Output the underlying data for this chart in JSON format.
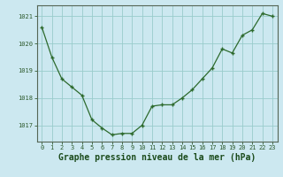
{
  "x": [
    0,
    1,
    2,
    3,
    4,
    5,
    6,
    7,
    8,
    9,
    10,
    11,
    12,
    13,
    14,
    15,
    16,
    17,
    18,
    19,
    20,
    21,
    22,
    23
  ],
  "y": [
    1020.6,
    1019.5,
    1018.7,
    1018.4,
    1018.1,
    1017.2,
    1016.9,
    1016.65,
    1016.7,
    1016.7,
    1017.0,
    1017.7,
    1017.75,
    1017.75,
    1018.0,
    1018.3,
    1018.7,
    1019.1,
    1019.8,
    1019.65,
    1020.3,
    1020.5,
    1021.1,
    1021.0
  ],
  "line_color": "#2d6a2d",
  "marker": "+",
  "bg_color": "#cce8f0",
  "grid_color": "#99cccc",
  "axis_color": "#556655",
  "tick_color": "#2d5a2d",
  "label_color": "#1a4a1a",
  "xlabel": "Graphe pression niveau de la mer (hPa)",
  "ylim": [
    1016.4,
    1021.4
  ],
  "yticks": [
    1017,
    1018,
    1019,
    1020,
    1021
  ],
  "xticks": [
    0,
    1,
    2,
    3,
    4,
    5,
    6,
    7,
    8,
    9,
    10,
    11,
    12,
    13,
    14,
    15,
    16,
    17,
    18,
    19,
    20,
    21,
    22,
    23
  ],
  "tick_fontsize": 5.0,
  "xlabel_fontsize": 7.0
}
